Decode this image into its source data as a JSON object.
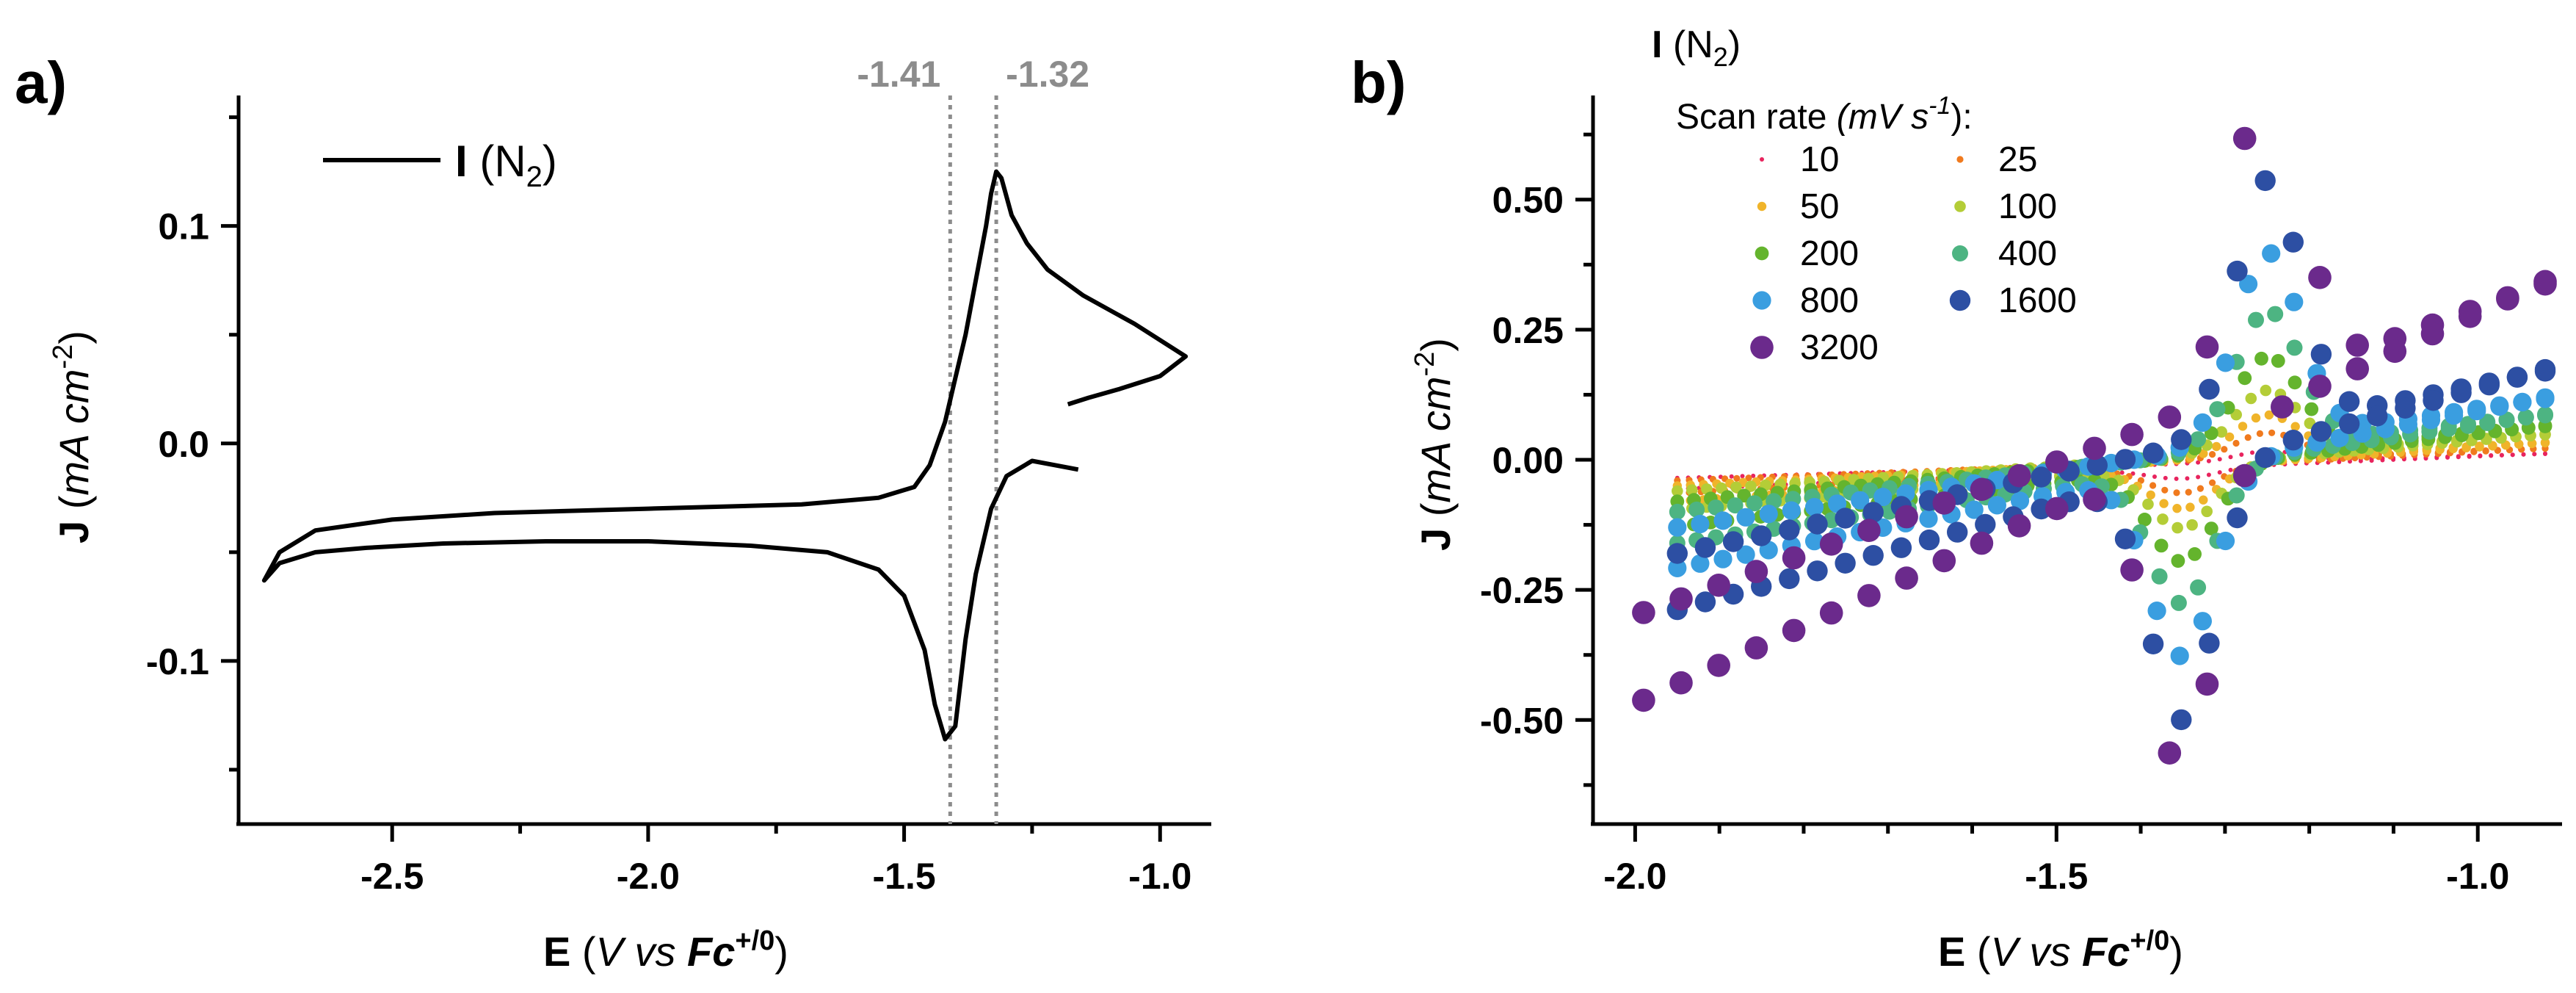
{
  "chart_data": [
    {
      "panel": "a)",
      "type": "line",
      "xlabel": {
        "main": "E",
        "inner": "V vs ",
        "ref": "Fc",
        "sup": "+/0"
      },
      "ylabel": {
        "main": "J",
        "inner": "mA cm",
        "sup": "-2"
      },
      "xlim": [
        -2.8,
        -0.9
      ],
      "ylim": [
        -0.175,
        0.16
      ],
      "xticks": [
        -2.5,
        -2.0,
        -1.5,
        -1.0
      ],
      "xtick_labels": [
        "-2.5",
        "-2.0",
        "-1.5",
        "-1.0"
      ],
      "yticks": [
        -0.1,
        0.0,
        0.1
      ],
      "ytick_labels": [
        "-0.1",
        "0.0",
        "0.1"
      ],
      "legend": {
        "label": "I",
        "species": "N",
        "sub": "2",
        "position": "top-left"
      },
      "annotations": [
        {
          "x": -1.41,
          "label": "-1.41",
          "style": "dotted-vertical"
        },
        {
          "x": -1.32,
          "label": "-1.32",
          "style": "dotted-vertical"
        }
      ],
      "series": [
        {
          "name": "I (N2)",
          "color": "#000000",
          "x": [
            -1.16,
            -1.25,
            -1.3,
            -1.33,
            -1.36,
            -1.38,
            -1.4,
            -1.42,
            -1.44,
            -1.46,
            -1.5,
            -1.55,
            -1.65,
            -1.8,
            -2.0,
            -2.2,
            -2.4,
            -2.55,
            -2.65,
            -2.72,
            -2.75,
            -2.72,
            -2.65,
            -2.5,
            -2.3,
            -2.0,
            -1.7,
            -1.55,
            -1.48,
            -1.45,
            -1.42,
            -1.4,
            -1.38,
            -1.36,
            -1.34,
            -1.33,
            -1.32,
            -1.31,
            -1.29,
            -1.26,
            -1.22,
            -1.15,
            -1.05,
            -0.95,
            -1.0,
            -1.08,
            -1.14,
            -1.18
          ],
          "y": [
            -0.012,
            -0.008,
            -0.015,
            -0.03,
            -0.06,
            -0.09,
            -0.13,
            -0.136,
            -0.12,
            -0.095,
            -0.07,
            -0.058,
            -0.05,
            -0.047,
            -0.045,
            -0.045,
            -0.046,
            -0.048,
            -0.05,
            -0.055,
            -0.063,
            -0.05,
            -0.04,
            -0.035,
            -0.032,
            -0.03,
            -0.028,
            -0.025,
            -0.02,
            -0.01,
            0.01,
            0.03,
            0.05,
            0.075,
            0.1,
            0.115,
            0.125,
            0.122,
            0.105,
            0.092,
            0.08,
            0.068,
            0.055,
            0.04,
            0.031,
            0.025,
            0.021,
            0.018
          ]
        }
      ]
    },
    {
      "panel": "b)",
      "type": "scatter",
      "xlabel": {
        "main": "E",
        "inner": "V vs ",
        "ref": "Fc",
        "sup": "+/0"
      },
      "ylabel": {
        "main": "J",
        "inner": "mA cm",
        "sup": "-2"
      },
      "xlim": [
        -2.05,
        -0.9
      ],
      "ylim": [
        -0.7,
        0.7
      ],
      "xticks": [
        -2.0,
        -1.5,
        -1.0
      ],
      "xtick_labels": [
        "-2.0",
        "-1.5",
        "-1.0"
      ],
      "yticks": [
        -0.5,
        -0.25,
        0.0,
        0.25,
        0.5
      ],
      "ytick_labels": [
        "-0.50",
        "-0.25",
        "0.00",
        "0.25",
        "0.50"
      ],
      "legend": {
        "header": {
          "label": "I",
          "species": "N",
          "sub": "2"
        },
        "title": {
          "text": "Scan rate ",
          "unit": "mV s",
          "sup": "-1",
          "suffix": "):"
        },
        "position": "top-left",
        "entries": [
          {
            "label": "10",
            "color": "#e8245e"
          },
          {
            "label": "25",
            "color": "#f07a1e"
          },
          {
            "label": "50",
            "color": "#f0b42a"
          },
          {
            "label": "100",
            "color": "#b4cd37"
          },
          {
            "label": "200",
            "color": "#64b42d"
          },
          {
            "label": "400",
            "color": "#4db482"
          },
          {
            "label": "800",
            "color": "#3a9ee0"
          },
          {
            "label": "1600",
            "color": "#2d4fa3"
          },
          {
            "label": "3200",
            "color": "#6b2a8c"
          }
        ]
      },
      "series": [
        {
          "name": "10",
          "amp": 0.02,
          "ret": [
            -0.035,
            0.01
          ]
        },
        {
          "name": "25",
          "amp": 0.05,
          "ret": [
            -0.04,
            0.02
          ]
        },
        {
          "name": "50",
          "amp": 0.08,
          "ret": [
            -0.05,
            0.03
          ]
        },
        {
          "name": "100",
          "amp": 0.12,
          "ret": [
            -0.06,
            0.045
          ]
        },
        {
          "name": "200",
          "amp": 0.18,
          "ret": [
            -0.08,
            0.06
          ]
        },
        {
          "name": "400",
          "amp": 0.26,
          "ret": [
            -0.1,
            0.08
          ]
        },
        {
          "name": "800",
          "amp": 0.36,
          "ret": [
            -0.13,
            0.11
          ]
        },
        {
          "name": "1600",
          "amp": 0.48,
          "ret": [
            -0.18,
            0.16
          ]
        },
        {
          "name": "3200",
          "amp": 0.62,
          "ret": [
            -0.27,
            0.32
          ]
        }
      ]
    }
  ]
}
